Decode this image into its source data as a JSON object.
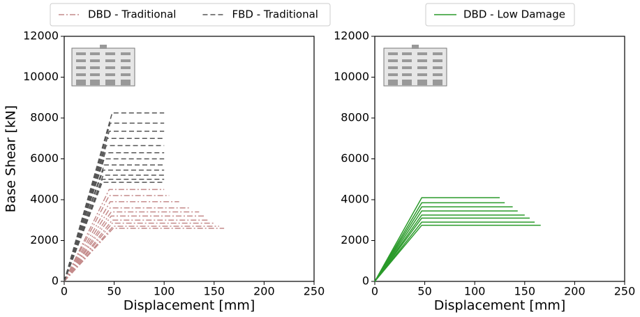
{
  "chart_data": [
    {
      "type": "line",
      "xlabel": "Displacement [mm]",
      "ylabel": "Base Shear [kN]",
      "xlim": [
        0,
        250
      ],
      "xticks": [
        0,
        50,
        100,
        150,
        200,
        250
      ],
      "ylim": [
        0,
        12000
      ],
      "yticks": [
        0,
        2000,
        4000,
        6000,
        8000,
        10000,
        12000
      ],
      "legend": "top",
      "series": [
        {
          "name": "DBD - Traditional",
          "color": "#c48a8a",
          "linestyle": "dashdot",
          "curves": [
            {
              "x": [
                0,
                45,
                100
              ],
              "values": [
                0,
                4500,
                4500
              ]
            },
            {
              "x": [
                0,
                45,
                105
              ],
              "values": [
                0,
                4200,
                4200
              ]
            },
            {
              "x": [
                0,
                46,
                115
              ],
              "values": [
                0,
                3900,
                3900
              ]
            },
            {
              "x": [
                0,
                46,
                125
              ],
              "values": [
                0,
                3600,
                3600
              ]
            },
            {
              "x": [
                0,
                47,
                135
              ],
              "values": [
                0,
                3400,
                3400
              ]
            },
            {
              "x": [
                0,
                47,
                140
              ],
              "values": [
                0,
                3200,
                3200
              ]
            },
            {
              "x": [
                0,
                48,
                145
              ],
              "values": [
                0,
                3000,
                3000
              ]
            },
            {
              "x": [
                0,
                48,
                150
              ],
              "values": [
                0,
                2850,
                2850
              ]
            },
            {
              "x": [
                0,
                49,
                155
              ],
              "values": [
                0,
                2700,
                2700
              ]
            },
            {
              "x": [
                0,
                49,
                160
              ],
              "values": [
                0,
                2600,
                2600
              ]
            }
          ]
        },
        {
          "name": "FBD - Traditional",
          "color": "#555555",
          "linestyle": "dashed",
          "curves": [
            {
              "x": [
                0,
                48,
                100
              ],
              "values": [
                0,
                8250,
                8250
              ]
            },
            {
              "x": [
                0,
                46,
                100
              ],
              "values": [
                0,
                7750,
                7750
              ]
            },
            {
              "x": [
                0,
                45,
                100
              ],
              "values": [
                0,
                7350,
                7350
              ]
            },
            {
              "x": [
                0,
                43,
                100
              ],
              "values": [
                0,
                7000,
                7000
              ]
            },
            {
              "x": [
                0,
                42,
                100
              ],
              "values": [
                0,
                6650,
                6650
              ]
            },
            {
              "x": [
                0,
                41,
                100
              ],
              "values": [
                0,
                6300,
                6300
              ]
            },
            {
              "x": [
                0,
                40,
                100
              ],
              "values": [
                0,
                6000,
                6000
              ]
            },
            {
              "x": [
                0,
                40,
                100
              ],
              "values": [
                0,
                5700,
                5700
              ]
            },
            {
              "x": [
                0,
                39,
                100
              ],
              "values": [
                0,
                5450,
                5450
              ]
            },
            {
              "x": [
                0,
                39,
                100
              ],
              "values": [
                0,
                5200,
                5200
              ]
            },
            {
              "x": [
                0,
                38,
                100
              ],
              "values": [
                0,
                5000,
                5000
              ]
            },
            {
              "x": [
                0,
                38,
                100
              ],
              "values": [
                0,
                4850,
                4850
              ]
            }
          ]
        }
      ]
    },
    {
      "type": "line",
      "xlabel": "Displacement [mm]",
      "xlim": [
        0,
        250
      ],
      "xticks": [
        0,
        50,
        100,
        150,
        200,
        250
      ],
      "ylim": [
        0,
        12000
      ],
      "yticks": [
        0,
        2000,
        4000,
        6000,
        8000,
        10000,
        12000
      ],
      "legend": "top",
      "series": [
        {
          "name": "DBD - Low Damage",
          "color": "#2a9a2a",
          "linestyle": "solid",
          "curves": [
            {
              "x": [
                0,
                47,
                125
              ],
              "values": [
                0,
                4100,
                4100
              ]
            },
            {
              "x": [
                0,
                47,
                130
              ],
              "values": [
                0,
                3850,
                3850
              ]
            },
            {
              "x": [
                0,
                47,
                138
              ],
              "values": [
                0,
                3650,
                3650
              ]
            },
            {
              "x": [
                0,
                47,
                143
              ],
              "values": [
                0,
                3450,
                3450
              ]
            },
            {
              "x": [
                0,
                47,
                150
              ],
              "values": [
                0,
                3250,
                3250
              ]
            },
            {
              "x": [
                0,
                47,
                155
              ],
              "values": [
                0,
                3100,
                3100
              ]
            },
            {
              "x": [
                0,
                47,
                160
              ],
              "values": [
                0,
                2900,
                2900
              ]
            },
            {
              "x": [
                0,
                47,
                166
              ],
              "values": [
                0,
                2750,
                2750
              ]
            }
          ]
        }
      ]
    }
  ]
}
